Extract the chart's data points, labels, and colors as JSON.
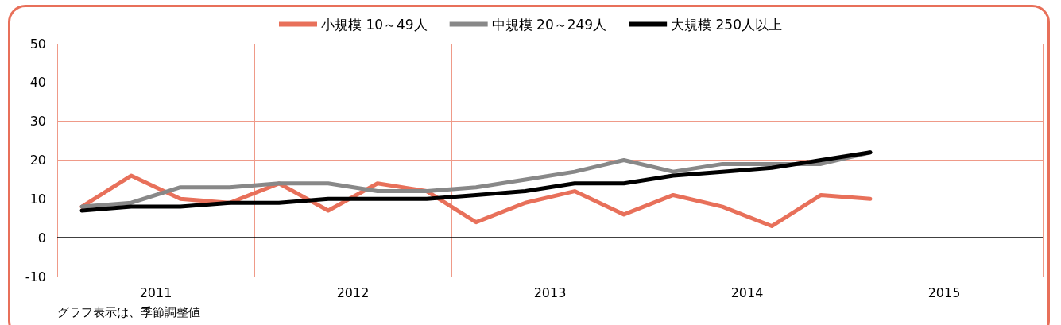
{
  "chart_data": {
    "type": "line",
    "x": [
      2011.125,
      2011.375,
      2011.625,
      2011.875,
      2012.125,
      2012.375,
      2012.625,
      2012.875,
      2013.125,
      2013.375,
      2013.625,
      2013.875,
      2014.125,
      2014.375,
      2014.625,
      2014.875,
      2015.125
    ],
    "series": [
      {
        "name": "小規模 10～49人",
        "color": "#e8705a",
        "values": [
          8,
          16,
          10,
          9,
          14,
          7,
          14,
          12,
          4,
          9,
          12,
          6,
          11,
          8,
          3,
          11,
          10
        ]
      },
      {
        "name": "中規模 20～249人",
        "color": "#888888",
        "values": [
          8,
          9,
          13,
          13,
          14,
          14,
          12,
          12,
          13,
          15,
          17,
          20,
          17,
          19,
          19,
          19,
          22
        ]
      },
      {
        "name": "大規模 250人以上",
        "color": "#000000",
        "values": [
          7,
          8,
          8,
          9,
          9,
          10,
          10,
          10,
          11,
          12,
          14,
          14,
          16,
          17,
          18,
          20,
          22
        ]
      }
    ],
    "xlim": [
      2011,
      2016
    ],
    "xticks": [
      {
        "value": 2011,
        "label": null
      },
      {
        "value": 2011.5,
        "label": "2011"
      },
      {
        "value": 2012,
        "label": null
      },
      {
        "value": 2012.5,
        "label": "2012"
      },
      {
        "value": 2013,
        "label": null
      },
      {
        "value": 2013.5,
        "label": "2013"
      },
      {
        "value": 2014,
        "label": null
      },
      {
        "value": 2014.5,
        "label": "2014"
      },
      {
        "value": 2015,
        "label": null
      },
      {
        "value": 2015.5,
        "label": "2015"
      },
      {
        "value": 2016,
        "label": null
      }
    ],
    "ylim": [
      -10,
      50
    ],
    "yticks": [
      -10,
      0,
      10,
      20,
      30,
      40,
      50
    ],
    "grid": true,
    "legend": "top",
    "marker": "none",
    "line_style": "solid",
    "ref_lines": [
      {
        "axis": "y",
        "value": 0,
        "color": "#000000"
      }
    ],
    "annotations": [
      "グラフ表示は、季節調整値"
    ]
  }
}
